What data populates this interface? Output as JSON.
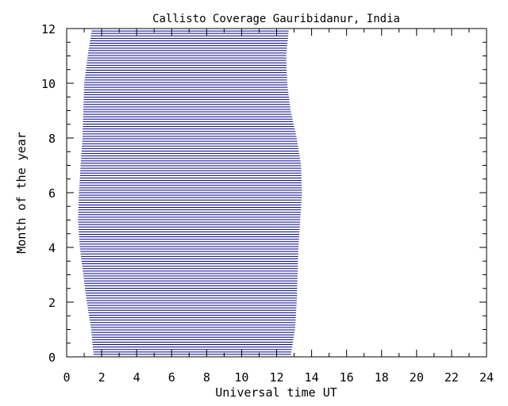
{
  "chart_data": {
    "type": "bar",
    "orientation": "horizontal",
    "title": "Callisto Coverage Gauribidanur, India",
    "xlabel": "Universal time UT",
    "ylabel": "Month of the year",
    "xlim": [
      0,
      24
    ],
    "ylim": [
      0,
      12
    ],
    "x_major_ticks": [
      0,
      2,
      4,
      6,
      8,
      10,
      12,
      14,
      16,
      18,
      20,
      22,
      24
    ],
    "x_minor_step": 1,
    "y_major_ticks": [
      0,
      2,
      4,
      6,
      8,
      10,
      12
    ],
    "y_minor_step": 0.5,
    "grid": false,
    "line_color": "#00008b",
    "series": [
      {
        "start_ut": [
          {
            "month": 0.0,
            "ut": 1.55
          },
          {
            "month": 1.0,
            "ut": 1.4
          },
          {
            "month": 2.0,
            "ut": 1.15
          },
          {
            "month": 3.0,
            "ut": 0.95
          },
          {
            "month": 4.0,
            "ut": 0.75
          },
          {
            "month": 5.0,
            "ut": 0.65
          },
          {
            "month": 6.0,
            "ut": 0.7
          },
          {
            "month": 7.0,
            "ut": 0.8
          },
          {
            "month": 8.0,
            "ut": 0.9
          },
          {
            "month": 9.0,
            "ut": 0.95
          },
          {
            "month": 10.0,
            "ut": 1.0
          },
          {
            "month": 11.0,
            "ut": 1.2
          },
          {
            "month": 12.0,
            "ut": 1.45
          }
        ],
        "end_ut": [
          {
            "month": 0.0,
            "ut": 12.8
          },
          {
            "month": 1.0,
            "ut": 13.05
          },
          {
            "month": 2.0,
            "ut": 13.15
          },
          {
            "month": 3.0,
            "ut": 13.2
          },
          {
            "month": 4.0,
            "ut": 13.25
          },
          {
            "month": 5.0,
            "ut": 13.35
          },
          {
            "month": 6.0,
            "ut": 13.45
          },
          {
            "month": 7.0,
            "ut": 13.4
          },
          {
            "month": 8.0,
            "ut": 13.15
          },
          {
            "month": 9.0,
            "ut": 12.8
          },
          {
            "month": 10.0,
            "ut": 12.6
          },
          {
            "month": 11.0,
            "ut": 12.55
          },
          {
            "month": 12.0,
            "ut": 12.7
          }
        ]
      }
    ]
  }
}
